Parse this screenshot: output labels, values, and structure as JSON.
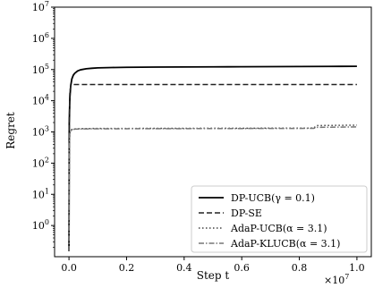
{
  "chart_data": {
    "type": "line",
    "xlabel": "Step t",
    "ylabel": "Regret",
    "x_multiplier": "×10",
    "x_multiplier_exp": "7",
    "xlim": [
      -0.05,
      1.05
    ],
    "ylim": [
      0.1,
      10000000
    ],
    "yscale": "log",
    "x_ticks": [
      {
        "value": 0.0,
        "label": "0.0"
      },
      {
        "value": 0.2,
        "label": "0.2"
      },
      {
        "value": 0.4,
        "label": "0.4"
      },
      {
        "value": 0.6,
        "label": "0.6"
      },
      {
        "value": 0.8,
        "label": "0.8"
      },
      {
        "value": 1.0,
        "label": "1.0"
      }
    ],
    "y_ticks": [
      {
        "value": 1,
        "base": "10",
        "exp": "0"
      },
      {
        "value": 10,
        "base": "10",
        "exp": "1"
      },
      {
        "value": 100,
        "base": "10",
        "exp": "2"
      },
      {
        "value": 1000,
        "base": "10",
        "exp": "3"
      },
      {
        "value": 10000,
        "base": "10",
        "exp": "4"
      },
      {
        "value": 100000,
        "base": "10",
        "exp": "5"
      },
      {
        "value": 1000000,
        "base": "10",
        "exp": "6"
      },
      {
        "value": 10000000,
        "base": "10",
        "exp": "7"
      }
    ],
    "grid": false,
    "legend_position": "bottom-right",
    "series": [
      {
        "name": "DP-UCB(γ = 0.1)",
        "color": "#000000",
        "style": "solid",
        "x": [
          0.0,
          0.001,
          0.003,
          0.006,
          0.01,
          0.015,
          0.02,
          0.03,
          0.04,
          0.06,
          0.08,
          0.1,
          0.15,
          0.2,
          0.3,
          0.4,
          0.5,
          0.6,
          0.7,
          0.8,
          0.9,
          1.0
        ],
        "y": [
          0.15,
          2000,
          12000,
          30000,
          50000,
          66000,
          76000,
          90000,
          98000,
          106000,
          110000,
          113000,
          116000,
          118000,
          120000,
          121000,
          122000,
          123000,
          124000,
          125000,
          126000,
          127000
        ]
      },
      {
        "name": "DP-SE",
        "color": "#222222",
        "style": "dashed",
        "x": [
          0.0,
          0.001,
          0.003,
          0.006,
          0.01,
          1.0
        ],
        "y": [
          0.15,
          2000,
          18000,
          30000,
          33000,
          33000
        ]
      },
      {
        "name": "AdaP-UCB(α = 3.1)",
        "color": "#444444",
        "style": "dotted",
        "x": [
          0.0,
          0.001,
          0.003,
          0.006,
          0.01,
          0.02,
          0.05,
          0.1,
          0.3,
          0.5,
          0.7,
          0.85,
          0.86,
          1.0
        ],
        "y": [
          0.15,
          300,
          900,
          1100,
          1200,
          1250,
          1280,
          1290,
          1300,
          1310,
          1320,
          1330,
          1600,
          1650
        ]
      },
      {
        "name": "AdaP-KLUCB(α = 3.1)",
        "color": "#777777",
        "style": "dashdot",
        "x": [
          0.0,
          0.001,
          0.003,
          0.006,
          0.01,
          0.02,
          0.05,
          0.1,
          0.3,
          0.5,
          0.7,
          0.85,
          0.86,
          1.0
        ],
        "y": [
          0.15,
          300,
          900,
          1050,
          1180,
          1230,
          1250,
          1260,
          1270,
          1280,
          1290,
          1300,
          1400,
          1450
        ]
      }
    ]
  }
}
